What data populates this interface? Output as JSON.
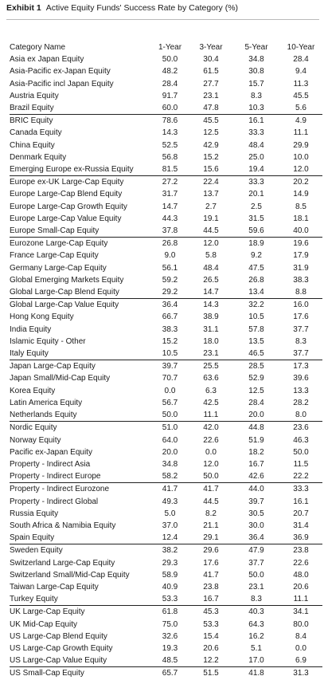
{
  "title": {
    "exhibit": "Exhibit 1",
    "text": "Active Equity Funds' Success Rate by Category (%)"
  },
  "chart_data": {
    "type": "table",
    "columns": [
      "Category Name",
      "1-Year",
      "3-Year",
      "5-Year",
      "10-Year"
    ],
    "rows": [
      [
        "Asia ex Japan Equity",
        "50.0",
        "30.4",
        "34.8",
        "28.4"
      ],
      [
        "Asia-Pacific ex-Japan Equity",
        "48.2",
        "61.5",
        "30.8",
        "9.4"
      ],
      [
        "Asia-Pacific incl Japan Equity",
        "28.4",
        "27.7",
        "15.7",
        "11.3"
      ],
      [
        "Austria Equity",
        "91.7",
        "23.1",
        "8.3",
        "45.5"
      ],
      [
        "Brazil Equity",
        "60.0",
        "47.8",
        "10.3",
        "5.6"
      ],
      [
        "BRIC Equity",
        "78.6",
        "45.5",
        "16.1",
        "4.9"
      ],
      [
        "Canada Equity",
        "14.3",
        "12.5",
        "33.3",
        "11.1"
      ],
      [
        "China Equity",
        "52.5",
        "42.9",
        "48.4",
        "29.9"
      ],
      [
        "Denmark Equity",
        "56.8",
        "15.2",
        "25.0",
        "10.0"
      ],
      [
        "Emerging Europe ex-Russia Equity",
        "81.5",
        "15.6",
        "19.4",
        "12.0"
      ],
      [
        "Europe ex-UK Large-Cap Equity",
        "27.2",
        "22.4",
        "33.3",
        "20.2"
      ],
      [
        "Europe Large-Cap Blend Equity",
        "31.7",
        "13.7",
        "20.1",
        "14.9"
      ],
      [
        "Europe Large-Cap Growth Equity",
        "14.7",
        "2.7",
        "2.5",
        "8.5"
      ],
      [
        "Europe Large-Cap Value Equity",
        "44.3",
        "19.1",
        "31.5",
        "18.1"
      ],
      [
        "Europe Small-Cap Equity",
        "37.8",
        "44.5",
        "59.6",
        "40.0"
      ],
      [
        "Eurozone Large-Cap Equity",
        "26.8",
        "12.0",
        "18.9",
        "19.6"
      ],
      [
        "France Large-Cap Equity",
        "9.0",
        "5.8",
        "9.2",
        "17.9"
      ],
      [
        "Germany Large-Cap Equity",
        "56.1",
        "48.4",
        "47.5",
        "31.9"
      ],
      [
        "Global Emerging Markets Equity",
        "59.2",
        "26.5",
        "26.8",
        "38.3"
      ],
      [
        "Global Large-Cap Blend Equity",
        "29.2",
        "14.7",
        "13.4",
        "8.8"
      ],
      [
        "Global Large-Cap Value Equity",
        "36.4",
        "14.3",
        "32.2",
        "16.0"
      ],
      [
        "Hong Kong Equity",
        "66.7",
        "38.9",
        "10.5",
        "17.6"
      ],
      [
        "India Equity",
        "38.3",
        "31.1",
        "57.8",
        "37.7"
      ],
      [
        "Islamic Equity - Other",
        "15.2",
        "18.0",
        "13.5",
        "8.3"
      ],
      [
        "Italy Equity",
        "10.5",
        "23.1",
        "46.5",
        "37.7"
      ],
      [
        "Japan Large-Cap Equity",
        "39.7",
        "25.5",
        "28.5",
        "17.3"
      ],
      [
        "Japan Small/Mid-Cap Equity",
        "70.7",
        "63.6",
        "52.9",
        "39.6"
      ],
      [
        "Korea Equity",
        "0.0",
        "6.3",
        "12.5",
        "13.3"
      ],
      [
        "Latin America Equity",
        "56.7",
        "42.5",
        "28.4",
        "28.2"
      ],
      [
        "Netherlands Equity",
        "50.0",
        "11.1",
        "20.0",
        "8.0"
      ],
      [
        "Nordic Equity",
        "51.0",
        "42.0",
        "44.8",
        "23.6"
      ],
      [
        "Norway Equity",
        "64.0",
        "22.6",
        "51.9",
        "46.3"
      ],
      [
        "Pacific ex-Japan Equity",
        "20.0",
        "0.0",
        "18.2",
        "50.0"
      ],
      [
        "Property - Indirect Asia",
        "34.8",
        "12.0",
        "16.7",
        "11.5"
      ],
      [
        "Property - Indirect Europe",
        "58.2",
        "50.0",
        "42.6",
        "22.2"
      ],
      [
        "Property - Indirect Eurozone",
        "41.7",
        "41.7",
        "44.0",
        "33.3"
      ],
      [
        "Property - Indirect Global",
        "49.3",
        "44.5",
        "39.7",
        "16.1"
      ],
      [
        "Russia Equity",
        "5.0",
        "8.2",
        "30.5",
        "20.7"
      ],
      [
        "South Africa & Namibia Equity",
        "37.0",
        "21.1",
        "30.0",
        "31.4"
      ],
      [
        "Spain Equity",
        "12.4",
        "29.1",
        "36.4",
        "36.9"
      ],
      [
        "Sweden Equity",
        "38.2",
        "29.6",
        "47.9",
        "23.8"
      ],
      [
        "Switzerland Large-Cap Equity",
        "29.3",
        "17.6",
        "37.7",
        "22.6"
      ],
      [
        "Switzerland Small/Mid-Cap Equity",
        "58.9",
        "41.7",
        "50.0",
        "48.0"
      ],
      [
        "Taiwan Large-Cap Equity",
        "40.9",
        "23.8",
        "23.1",
        "20.6"
      ],
      [
        "Turkey Equity",
        "53.3",
        "16.7",
        "8.3",
        "11.1"
      ],
      [
        "UK Large-Cap Equity",
        "61.8",
        "45.3",
        "40.3",
        "34.1"
      ],
      [
        "UK Mid-Cap Equity",
        "75.0",
        "53.3",
        "64.3",
        "80.0"
      ],
      [
        "US Large-Cap Blend Equity",
        "32.6",
        "15.4",
        "16.2",
        "8.4"
      ],
      [
        "US Large-Cap Growth Equity",
        "19.3",
        "20.6",
        "5.1",
        "0.0"
      ],
      [
        "US Large-Cap Value Equity",
        "48.5",
        "12.2",
        "17.0",
        "6.9"
      ],
      [
        "US Small-Cap Equity",
        "65.7",
        "51.5",
        "41.8",
        "31.3"
      ]
    ]
  }
}
